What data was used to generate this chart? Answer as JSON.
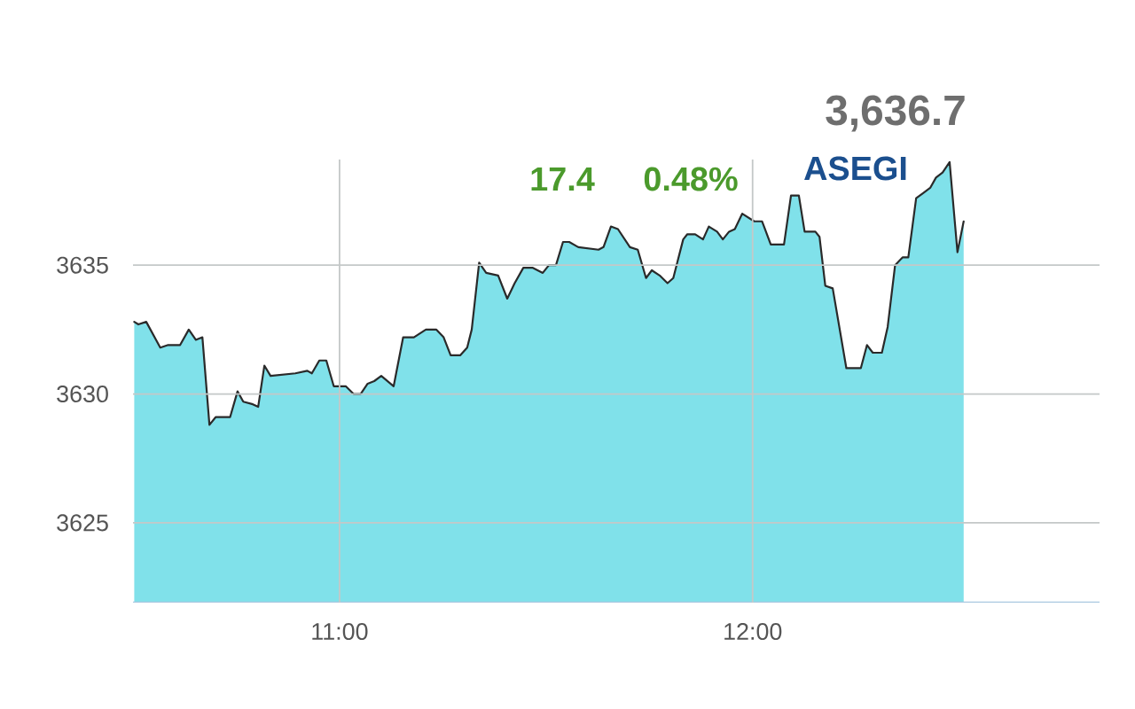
{
  "chart_data": {
    "type": "area",
    "title": "ASEGI",
    "annotations": [
      "3,636.7",
      "17.4",
      "0.48%"
    ],
    "x": [
      10.503,
      10.513,
      10.532,
      10.566,
      10.585,
      10.614,
      10.635,
      10.652,
      10.668,
      10.685,
      10.7,
      10.728,
      10.735,
      10.753,
      10.767,
      10.79,
      10.803,
      10.818,
      10.833,
      10.893,
      10.922,
      10.933,
      10.951,
      10.968,
      10.986,
      11.015,
      11.034,
      11.051,
      11.068,
      11.084,
      11.101,
      11.131,
      11.154,
      11.18,
      11.209,
      11.234,
      11.252,
      11.269,
      11.292,
      11.309,
      11.32,
      11.338,
      11.355,
      11.384,
      11.406,
      11.424,
      11.445,
      11.467,
      11.492,
      11.507,
      11.524,
      11.541,
      11.556,
      11.578,
      11.627,
      11.639,
      11.657,
      11.674,
      11.703,
      11.722,
      11.742,
      11.756,
      11.775,
      11.794,
      11.808,
      11.832,
      11.842,
      11.861,
      11.88,
      11.894,
      11.914,
      11.928,
      11.943,
      11.957,
      11.975,
      12.004,
      12.023,
      12.044,
      12.076,
      12.093,
      12.112,
      12.126,
      12.152,
      12.162,
      12.176,
      12.194,
      12.227,
      12.262,
      12.277,
      12.291,
      12.313,
      12.327,
      12.345,
      12.363,
      12.377,
      12.396,
      12.413,
      12.43,
      12.444,
      12.46,
      12.477,
      12.496,
      12.511
    ],
    "series": [
      {
        "color": "#80e1ea",
        "values": [
          3632.8,
          3632.7,
          3632.8,
          3631.8,
          3631.9,
          3631.9,
          3632.5,
          3632.1,
          3632.2,
          3628.8,
          3629.1,
          3629.1,
          3629.1,
          3630.1,
          3629.7,
          3629.6,
          3629.5,
          3631.1,
          3630.7,
          3630.8,
          3630.9,
          3630.8,
          3631.3,
          3631.3,
          3630.3,
          3630.3,
          3630.0,
          3630.0,
          3630.4,
          3630.5,
          3630.7,
          3630.3,
          3632.2,
          3632.2,
          3632.5,
          3632.5,
          3632.2,
          3631.5,
          3631.5,
          3631.8,
          3632.5,
          3635.1,
          3634.7,
          3634.6,
          3633.7,
          3634.3,
          3634.9,
          3634.9,
          3634.7,
          3635.0,
          3635.0,
          3635.9,
          3635.9,
          3635.7,
          3635.6,
          3635.7,
          3636.5,
          3636.4,
          3635.7,
          3635.6,
          3634.5,
          3634.8,
          3634.6,
          3634.3,
          3634.5,
          3636.0,
          3636.2,
          3636.2,
          3636.0,
          3636.5,
          3636.3,
          3636.0,
          3636.3,
          3636.4,
          3637.0,
          3636.7,
          3636.7,
          3635.8,
          3635.8,
          3637.7,
          3637.7,
          3636.3,
          3636.3,
          3636.1,
          3634.2,
          3634.1,
          3631.0,
          3631.0,
          3631.9,
          3631.6,
          3631.6,
          3632.6,
          3635.0,
          3635.3,
          3635.3,
          3637.6,
          3637.8,
          3638.0,
          3638.4,
          3638.6,
          3639.0,
          3635.5,
          3636.7
        ]
      }
    ],
    "xlim": [
      10.5,
      12.84
    ],
    "ylim": [
      3621.9,
      3639.1
    ],
    "xticks": [
      {
        "value": 11,
        "label": "11:00"
      },
      {
        "value": 12,
        "label": "12:00"
      }
    ],
    "yticks": [
      3625,
      3630,
      3635
    ],
    "grid": true
  }
}
